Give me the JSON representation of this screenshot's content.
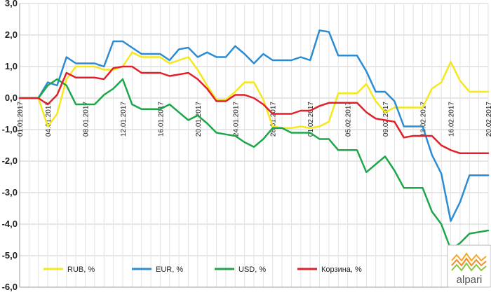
{
  "chart_data": {
    "type": "line",
    "title": "",
    "xlabel": "",
    "ylabel": "",
    "ylim": [
      -6,
      3
    ],
    "yticks": [
      "3,0",
      "2,0",
      "1,0",
      "0,0",
      "-1,0",
      "-2,0",
      "-3,0",
      "-4,0",
      "-5,0",
      "-6,0"
    ],
    "x_start": "01.01.2017",
    "x_end": "20.02.2017",
    "xticks": [
      "01.01.2017",
      "04.01.2017",
      "08.01.2017",
      "12.01.2017",
      "16.01.2017",
      "20.01.2017",
      "24.01.2017",
      "28.01.2017",
      "01.02.2017",
      "05.02.2017",
      "09.02.2017",
      "13.02.2017",
      "16.02.2017",
      "20.02.2017"
    ],
    "grid": true,
    "legend_position": "bottom-left",
    "series": [
      {
        "name": "RUB, %",
        "color": "#f5e81c",
        "points": [
          [
            "01.01.2017",
            0.0
          ],
          [
            "03.01.2017",
            0.0
          ],
          [
            "04.01.2017",
            -0.9
          ],
          [
            "05.01.2017",
            -0.5
          ],
          [
            "06.01.2017",
            0.6
          ],
          [
            "07.01.2017",
            1.0
          ],
          [
            "08.01.2017",
            1.0
          ],
          [
            "09.01.2017",
            1.0
          ],
          [
            "10.01.2017",
            0.9
          ],
          [
            "11.01.2017",
            0.9
          ],
          [
            "12.01.2017",
            1.0
          ],
          [
            "13.01.2017",
            1.45
          ],
          [
            "14.01.2017",
            1.3
          ],
          [
            "15.01.2017",
            1.3
          ],
          [
            "16.01.2017",
            1.3
          ],
          [
            "17.01.2017",
            1.1
          ],
          [
            "18.01.2017",
            1.2
          ],
          [
            "19.01.2017",
            1.3
          ],
          [
            "20.01.2017",
            0.9
          ],
          [
            "21.01.2017",
            0.4
          ],
          [
            "22.01.2017",
            -0.05
          ],
          [
            "23.01.2017",
            -0.05
          ],
          [
            "24.01.2017",
            0.2
          ],
          [
            "25.01.2017",
            0.5
          ],
          [
            "26.01.2017",
            0.5
          ],
          [
            "27.01.2017",
            -0.05
          ],
          [
            "28.01.2017",
            -0.9
          ],
          [
            "29.01.2017",
            -0.95
          ],
          [
            "30.01.2017",
            -0.95
          ],
          [
            "31.01.2017",
            -0.9
          ],
          [
            "01.02.2017",
            -0.95
          ],
          [
            "02.02.2017",
            -0.9
          ],
          [
            "03.02.2017",
            -0.75
          ],
          [
            "04.02.2017",
            0.15
          ],
          [
            "05.02.2017",
            0.15
          ],
          [
            "06.02.2017",
            0.15
          ],
          [
            "07.02.2017",
            0.45
          ],
          [
            "08.02.2017",
            -0.1
          ],
          [
            "09.02.2017",
            -0.45
          ],
          [
            "10.02.2017",
            -0.3
          ],
          [
            "11.02.2017",
            -0.3
          ],
          [
            "12.02.2017",
            -0.3
          ],
          [
            "13.02.2017",
            -0.3
          ],
          [
            "14.02.2017",
            0.3
          ],
          [
            "15.02.2017",
            0.5
          ],
          [
            "16.02.2017",
            1.15
          ],
          [
            "17.02.2017",
            0.55
          ],
          [
            "18.02.2017",
            0.2
          ],
          [
            "19.02.2017",
            0.2
          ],
          [
            "20.02.2017",
            0.2
          ]
        ]
      },
      {
        "name": "EUR, %",
        "color": "#2b8cd4",
        "points": [
          [
            "01.01.2017",
            0.0
          ],
          [
            "03.01.2017",
            0.0
          ],
          [
            "04.01.2017",
            0.5
          ],
          [
            "05.01.2017",
            0.4
          ],
          [
            "06.01.2017",
            1.3
          ],
          [
            "07.01.2017",
            1.1
          ],
          [
            "08.01.2017",
            1.1
          ],
          [
            "09.01.2017",
            1.1
          ],
          [
            "10.01.2017",
            1.0
          ],
          [
            "11.01.2017",
            1.8
          ],
          [
            "12.01.2017",
            1.8
          ],
          [
            "13.01.2017",
            1.6
          ],
          [
            "14.01.2017",
            1.4
          ],
          [
            "15.01.2017",
            1.4
          ],
          [
            "16.01.2017",
            1.4
          ],
          [
            "17.01.2017",
            1.2
          ],
          [
            "18.01.2017",
            1.55
          ],
          [
            "19.01.2017",
            1.6
          ],
          [
            "20.01.2017",
            1.3
          ],
          [
            "21.01.2017",
            1.45
          ],
          [
            "22.01.2017",
            1.3
          ],
          [
            "23.01.2017",
            1.3
          ],
          [
            "24.01.2017",
            1.65
          ],
          [
            "25.01.2017",
            1.4
          ],
          [
            "26.01.2017",
            1.1
          ],
          [
            "27.01.2017",
            1.4
          ],
          [
            "28.01.2017",
            1.2
          ],
          [
            "29.01.2017",
            1.2
          ],
          [
            "30.01.2017",
            1.2
          ],
          [
            "31.01.2017",
            1.3
          ],
          [
            "01.02.2017",
            1.2
          ],
          [
            "02.02.2017",
            2.15
          ],
          [
            "03.02.2017",
            2.1
          ],
          [
            "04.02.2017",
            1.35
          ],
          [
            "05.02.2017",
            1.35
          ],
          [
            "06.02.2017",
            1.35
          ],
          [
            "07.02.2017",
            0.85
          ],
          [
            "08.02.2017",
            0.2
          ],
          [
            "09.02.2017",
            0.2
          ],
          [
            "10.02.2017",
            -0.1
          ],
          [
            "11.02.2017",
            -0.9
          ],
          [
            "12.02.2017",
            -0.9
          ],
          [
            "13.02.2017",
            -0.9
          ],
          [
            "14.02.2017",
            -1.8
          ],
          [
            "15.02.2017",
            -2.4
          ],
          [
            "16.02.2017",
            -3.9
          ],
          [
            "17.02.2017",
            -3.3
          ],
          [
            "18.02.2017",
            -2.45
          ],
          [
            "19.02.2017",
            -2.45
          ],
          [
            "20.02.2017",
            -2.45
          ]
        ]
      },
      {
        "name": "USD, %",
        "color": "#1fa64a",
        "points": [
          [
            "01.01.2017",
            0.0
          ],
          [
            "03.01.2017",
            0.0
          ],
          [
            "04.01.2017",
            0.4
          ],
          [
            "05.01.2017",
            0.6
          ],
          [
            "06.01.2017",
            0.4
          ],
          [
            "07.01.2017",
            -0.2
          ],
          [
            "08.01.2017",
            -0.2
          ],
          [
            "09.01.2017",
            -0.2
          ],
          [
            "10.01.2017",
            0.1
          ],
          [
            "11.01.2017",
            0.3
          ],
          [
            "12.01.2017",
            0.6
          ],
          [
            "13.01.2017",
            -0.2
          ],
          [
            "14.01.2017",
            -0.35
          ],
          [
            "15.01.2017",
            -0.35
          ],
          [
            "16.01.2017",
            -0.35
          ],
          [
            "17.01.2017",
            -0.2
          ],
          [
            "18.01.2017",
            -0.45
          ],
          [
            "19.01.2017",
            -0.7
          ],
          [
            "20.01.2017",
            -0.55
          ],
          [
            "21.01.2017",
            -0.8
          ],
          [
            "22.01.2017",
            -1.1
          ],
          [
            "23.01.2017",
            -1.15
          ],
          [
            "24.01.2017",
            -1.2
          ],
          [
            "25.01.2017",
            -1.4
          ],
          [
            "26.01.2017",
            -1.55
          ],
          [
            "27.01.2017",
            -1.3
          ],
          [
            "28.01.2017",
            -0.95
          ],
          [
            "29.01.2017",
            -0.95
          ],
          [
            "30.01.2017",
            -1.1
          ],
          [
            "31.01.2017",
            -1.1
          ],
          [
            "01.02.2017",
            -1.1
          ],
          [
            "02.02.2017",
            -1.3
          ],
          [
            "03.02.2017",
            -1.3
          ],
          [
            "04.02.2017",
            -1.65
          ],
          [
            "05.02.2017",
            -1.65
          ],
          [
            "06.02.2017",
            -1.65
          ],
          [
            "07.02.2017",
            -2.35
          ],
          [
            "08.02.2017",
            -2.1
          ],
          [
            "09.02.2017",
            -1.85
          ],
          [
            "10.02.2017",
            -2.3
          ],
          [
            "11.02.2017",
            -2.85
          ],
          [
            "12.02.2017",
            -2.85
          ],
          [
            "13.02.2017",
            -2.85
          ],
          [
            "14.02.2017",
            -3.6
          ],
          [
            "15.02.2017",
            -4.0
          ],
          [
            "16.02.2017",
            -4.8
          ],
          [
            "17.02.2017",
            -4.6
          ],
          [
            "18.02.2017",
            -4.3
          ],
          [
            "19.02.2017",
            -4.25
          ],
          [
            "20.02.2017",
            -4.2
          ]
        ]
      },
      {
        "name": "Корзина, %",
        "color": "#e3202a",
        "points": [
          [
            "01.01.2017",
            0.0
          ],
          [
            "03.01.2017",
            0.0
          ],
          [
            "04.01.2017",
            -0.2
          ],
          [
            "05.01.2017",
            0.1
          ],
          [
            "06.01.2017",
            0.8
          ],
          [
            "07.01.2017",
            0.65
          ],
          [
            "08.01.2017",
            0.65
          ],
          [
            "09.01.2017",
            0.65
          ],
          [
            "10.01.2017",
            0.6
          ],
          [
            "11.01.2017",
            0.95
          ],
          [
            "12.01.2017",
            1.0
          ],
          [
            "13.01.2017",
            1.0
          ],
          [
            "14.01.2017",
            0.8
          ],
          [
            "15.01.2017",
            0.8
          ],
          [
            "16.01.2017",
            0.8
          ],
          [
            "17.01.2017",
            0.7
          ],
          [
            "18.01.2017",
            0.75
          ],
          [
            "19.01.2017",
            0.8
          ],
          [
            "20.01.2017",
            0.6
          ],
          [
            "21.01.2017",
            0.3
          ],
          [
            "22.01.2017",
            -0.1
          ],
          [
            "23.01.2017",
            -0.1
          ],
          [
            "24.01.2017",
            0.1
          ],
          [
            "25.01.2017",
            0.1
          ],
          [
            "26.01.2017",
            0.0
          ],
          [
            "27.01.2017",
            -0.2
          ],
          [
            "28.01.2017",
            -0.5
          ],
          [
            "29.01.2017",
            -0.5
          ],
          [
            "30.01.2017",
            -0.5
          ],
          [
            "31.01.2017",
            -0.4
          ],
          [
            "01.02.2017",
            -0.4
          ],
          [
            "02.02.2017",
            -0.25
          ],
          [
            "03.02.2017",
            -0.15
          ],
          [
            "04.02.2017",
            -0.15
          ],
          [
            "05.02.2017",
            -0.15
          ],
          [
            "06.02.2017",
            -0.15
          ],
          [
            "07.02.2017",
            -0.45
          ],
          [
            "08.02.2017",
            -0.65
          ],
          [
            "09.02.2017",
            -0.7
          ],
          [
            "10.02.2017",
            -0.75
          ],
          [
            "11.02.2017",
            -1.25
          ],
          [
            "12.02.2017",
            -1.2
          ],
          [
            "13.02.2017",
            -1.2
          ],
          [
            "14.02.2017",
            -1.2
          ],
          [
            "15.02.2017",
            -1.5
          ],
          [
            "16.02.2017",
            -1.65
          ],
          [
            "17.02.2017",
            -1.75
          ],
          [
            "18.02.2017",
            -1.75
          ],
          [
            "19.02.2017",
            -1.75
          ],
          [
            "20.02.2017",
            -1.75
          ]
        ]
      }
    ]
  },
  "logo": {
    "text": "alpari",
    "colors": [
      "#f5a623",
      "#8cc63f"
    ]
  }
}
